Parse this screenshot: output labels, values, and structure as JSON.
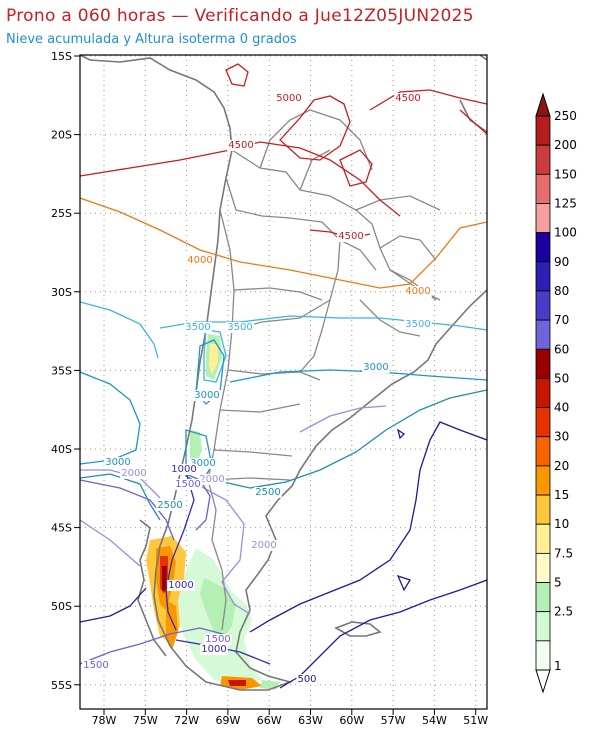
{
  "header": {
    "title": "Prono a 060 horas — Verificando a Jue12Z05JUN2025",
    "subtitle": "Nieve acumulada y Altura isoterma 0 grados"
  },
  "axes": {
    "lat_labels": [
      "15S",
      "20S",
      "25S",
      "30S",
      "35S",
      "40S",
      "45S",
      "50S",
      "55S"
    ],
    "lon_labels": [
      "78W",
      "75W",
      "72W",
      "69W",
      "66W",
      "63W",
      "60W",
      "57W",
      "54W",
      "51W"
    ]
  },
  "isotherm_labels": [
    {
      "text": "5000",
      "color": "#c81e1e"
    },
    {
      "text": "4500",
      "color": "#c81e1e"
    },
    {
      "text": "4500",
      "color": "#c81e1e"
    },
    {
      "text": "4500",
      "color": "#c81e1e"
    },
    {
      "text": "4000",
      "color": "#f07818"
    },
    {
      "text": "4000",
      "color": "#f07818"
    },
    {
      "text": "3500",
      "color": "#3cb4e6"
    },
    {
      "text": "3500",
      "color": "#3cb4e6"
    },
    {
      "text": "3500",
      "color": "#3cb4e6"
    },
    {
      "text": "3000",
      "color": "#1e96c8"
    },
    {
      "text": "3000",
      "color": "#1e96c8"
    },
    {
      "text": "3000",
      "color": "#1e96c8"
    },
    {
      "text": "3000",
      "color": "#1e96c8"
    },
    {
      "text": "2500",
      "color": "#1e8cb4"
    },
    {
      "text": "2500",
      "color": "#1e8cb4"
    },
    {
      "text": "2000",
      "color": "#9b8ce6"
    },
    {
      "text": "2000",
      "color": "#9b8ce6"
    },
    {
      "text": "2000",
      "color": "#9b8ce6"
    },
    {
      "text": "1500",
      "color": "#6e5fd2"
    },
    {
      "text": "1500",
      "color": "#6e5fd2"
    },
    {
      "text": "1500",
      "color": "#6e5fd2"
    },
    {
      "text": "1000",
      "color": "#3c28b4"
    },
    {
      "text": "1000",
      "color": "#3c28b4"
    },
    {
      "text": "1000",
      "color": "#3c28b4"
    },
    {
      "text": "500",
      "color": "#2814a0"
    }
  ],
  "colorbar": {
    "labels": [
      "250",
      "200",
      "150",
      "125",
      "100",
      "90",
      "80",
      "70",
      "60",
      "50",
      "40",
      "30",
      "20",
      "15",
      "10",
      "7.5",
      "5",
      "2.5",
      "1"
    ],
    "colors": [
      "#b41e1e",
      "#cd3c3c",
      "#e66e6e",
      "#f5a0a0",
      "#1e00a0",
      "#2d1eb4",
      "#4b3cc8",
      "#6e64dc",
      "#9b0000",
      "#c81400",
      "#e63200",
      "#f56400",
      "#fa9600",
      "#ffc83c",
      "#fff096",
      "#fffac8",
      "#b4f0b4",
      "#d2fad2",
      "#f0fff0"
    ],
    "top_arrow_color": "#8c1414",
    "bottom_arrow_color": "#ffffff"
  },
  "colors": {
    "coast": "#777777",
    "border": "#888888",
    "grid": "#999999"
  }
}
